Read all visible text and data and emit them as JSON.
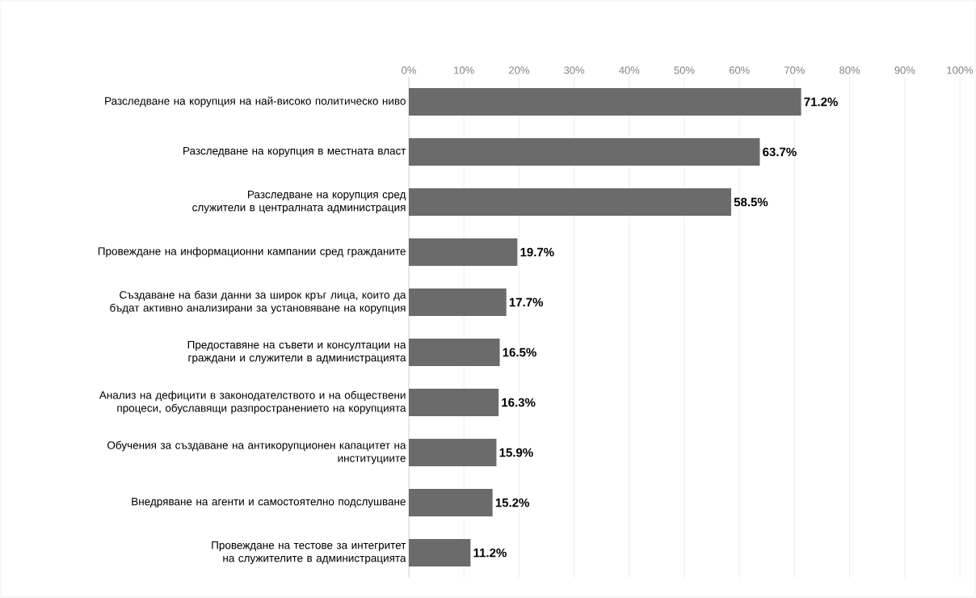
{
  "chart_data": {
    "type": "bar",
    "orientation": "horizontal",
    "categories": [
      "Разследване на корупция на най-високо политическо ниво",
      "Разследване на корупция в местната власт",
      "Разследване на корупция сред служители в централната администрация",
      "Провеждане на информационни кампании сред гражданите",
      "Създаване на бази данни за широк кръг лица, които да бъдат активно анализирани за установяване на корупция",
      "Предоставяне на съвети и консултации на граждани и служители в администрацията",
      "Анализ на дефицити в законодателството и на обществени процеси, обуславящи разпространението на корупцията",
      "Обучения за създаване на антикорупционен капацитет на институциите",
      "Внедряване на агенти и самостоятелно подслушване",
      "Провеждане на тестове за интегритет на служителите в администрацията"
    ],
    "values": [
      71.2,
      63.7,
      58.5,
      19.7,
      17.7,
      16.5,
      16.3,
      15.9,
      15.2,
      11.2
    ],
    "value_labels": [
      "71.2%",
      "63.7%",
      "58.5%",
      "19.7%",
      "17.7%",
      "16.5%",
      "16.3%",
      "15.9%",
      "15.2%",
      "11.2%"
    ],
    "color": "#6b6b6b",
    "xlim": [
      0,
      100
    ],
    "xticks": [
      {
        "value": 0,
        "label": "0%"
      },
      {
        "value": 10,
        "label": "10%"
      },
      {
        "value": 20,
        "label": "20%"
      },
      {
        "value": 30,
        "label": "30%"
      },
      {
        "value": 40,
        "label": "40%"
      },
      {
        "value": 50,
        "label": "50%"
      },
      {
        "value": 60,
        "label": "60%"
      },
      {
        "value": 70,
        "label": "70%"
      },
      {
        "value": 80,
        "label": "80%"
      },
      {
        "value": 90,
        "label": "90%"
      },
      {
        "value": 100,
        "label": "100%"
      }
    ],
    "grid": "x"
  }
}
